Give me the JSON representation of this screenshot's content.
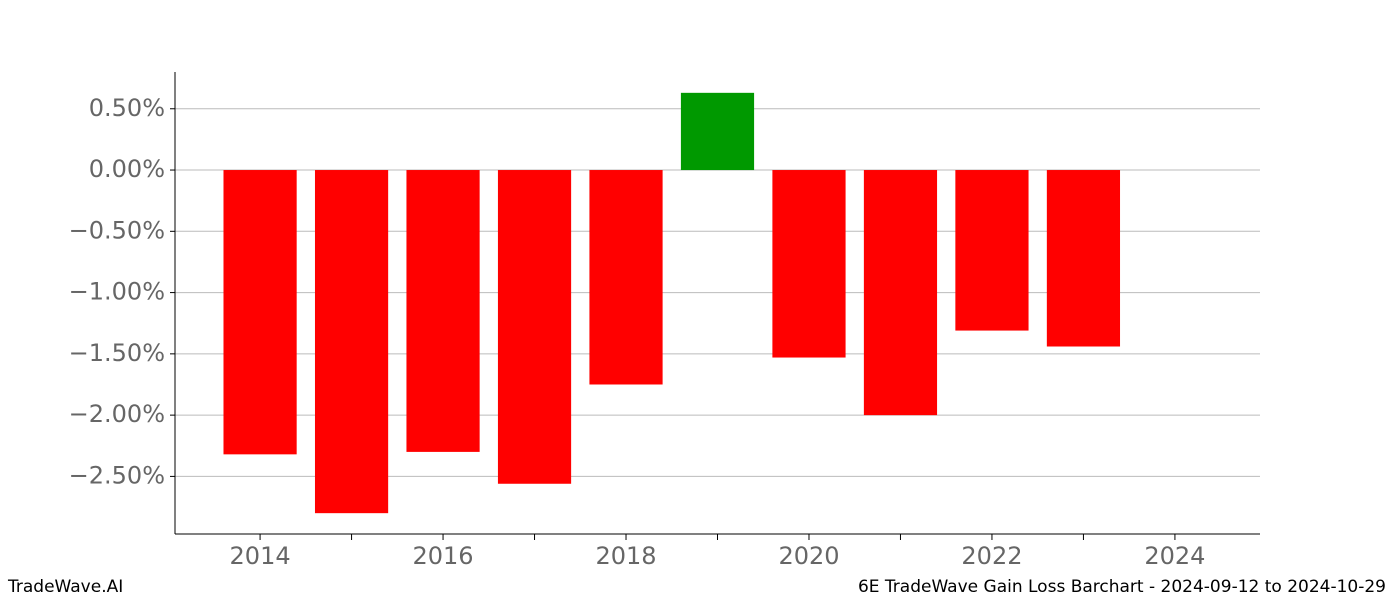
{
  "chart_data": {
    "type": "bar",
    "x": [
      2014,
      2015,
      2016,
      2017,
      2018,
      2019,
      2020,
      2021,
      2022,
      2023
    ],
    "values": [
      -2.32,
      -2.8,
      -2.3,
      -2.56,
      -1.75,
      0.63,
      -1.53,
      -2.0,
      -1.31,
      -1.44
    ],
    "colors": [
      "#ff0000",
      "#ff0000",
      "#ff0000",
      "#ff0000",
      "#ff0000",
      "#009900",
      "#ff0000",
      "#ff0000",
      "#ff0000",
      "#ff0000"
    ],
    "xlim": [
      2013.07,
      2024.93
    ],
    "xticks": [
      2014,
      2016,
      2018,
      2020,
      2022,
      2024
    ],
    "xminorticks": [
      2015,
      2017,
      2019,
      2021,
      2023
    ],
    "ylim": [
      -2.97,
      0.8
    ],
    "yticks": [
      {
        "value": 0.5,
        "label": "0.50%"
      },
      {
        "value": 0,
        "label": "0.00%"
      },
      {
        "value": -0.5,
        "label": "−0.50%"
      },
      {
        "value": -1,
        "label": "−1.00%"
      },
      {
        "value": -1.5,
        "label": "−1.50%"
      },
      {
        "value": -2,
        "label": "−2.00%"
      },
      {
        "value": -2.5,
        "label": "−2.50%"
      }
    ],
    "grid": true,
    "footer_left": "TradeWave.AI",
    "footer_right": "6E TradeWave Gain Loss Barchart - 2024-09-12 to 2024-10-29"
  }
}
